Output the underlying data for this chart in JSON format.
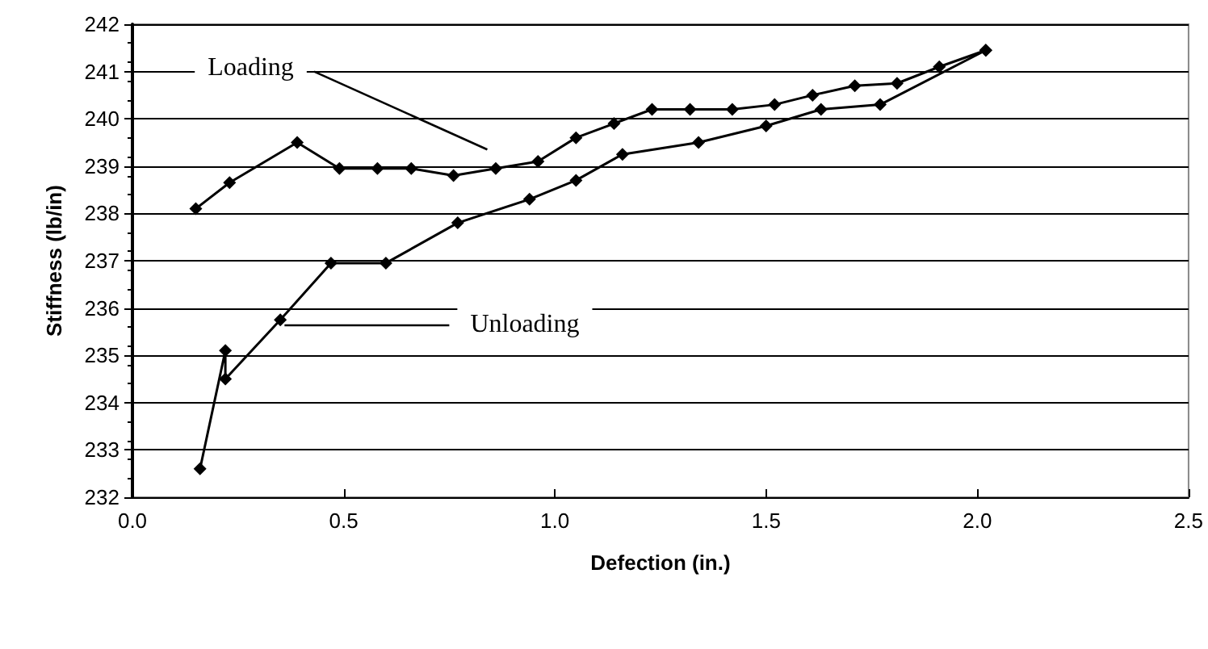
{
  "chart_data": {
    "type": "line",
    "xlabel": "Defection (in.)",
    "ylabel": "Stiffness (lb/in)",
    "xlim": [
      0,
      2.5
    ],
    "xticks": [
      {
        "value": 0,
        "label": "0.0"
      },
      {
        "value": 0.5,
        "label": "0.5"
      },
      {
        "value": 1,
        "label": "1.0"
      },
      {
        "value": 1.5,
        "label": "1.5"
      },
      {
        "value": 2,
        "label": "2.0"
      },
      {
        "value": 2.5,
        "label": "2.5"
      }
    ],
    "ylim": [
      232,
      242
    ],
    "yticks": [
      232,
      233,
      234,
      235,
      236,
      237,
      238,
      239,
      240,
      241,
      242
    ],
    "grid": "y",
    "marker": "diamond",
    "line_style": "solid",
    "legend": false,
    "series": [
      {
        "name": "Loading",
        "color": "#000000",
        "x": [
          0.15,
          0.23,
          0.39,
          0.49,
          0.58,
          0.66,
          0.76,
          0.86,
          0.96,
          1.05,
          1.14,
          1.23,
          1.32,
          1.42,
          1.52,
          1.61,
          1.71,
          1.81,
          1.91,
          2.02
        ],
        "values": [
          238.1,
          238.65,
          239.5,
          238.95,
          238.95,
          238.95,
          238.8,
          238.95,
          239.1,
          239.6,
          239.9,
          240.2,
          240.2,
          240.2,
          240.3,
          240.5,
          240.7,
          240.75,
          241.1,
          241.45
        ]
      },
      {
        "name": "Unloading",
        "color": "#000000",
        "x": [
          0.16,
          0.22,
          0.22,
          0.35,
          0.47,
          0.6,
          0.77,
          0.94,
          1.05,
          1.16,
          1.34,
          1.5,
          1.63,
          1.77,
          2.02
        ],
        "values": [
          232.6,
          235.1,
          234.5,
          235.75,
          236.95,
          236.95,
          237.8,
          238.3,
          238.7,
          239.25,
          239.5,
          239.85,
          240.2,
          240.3,
          241.45
        ]
      }
    ]
  }
}
